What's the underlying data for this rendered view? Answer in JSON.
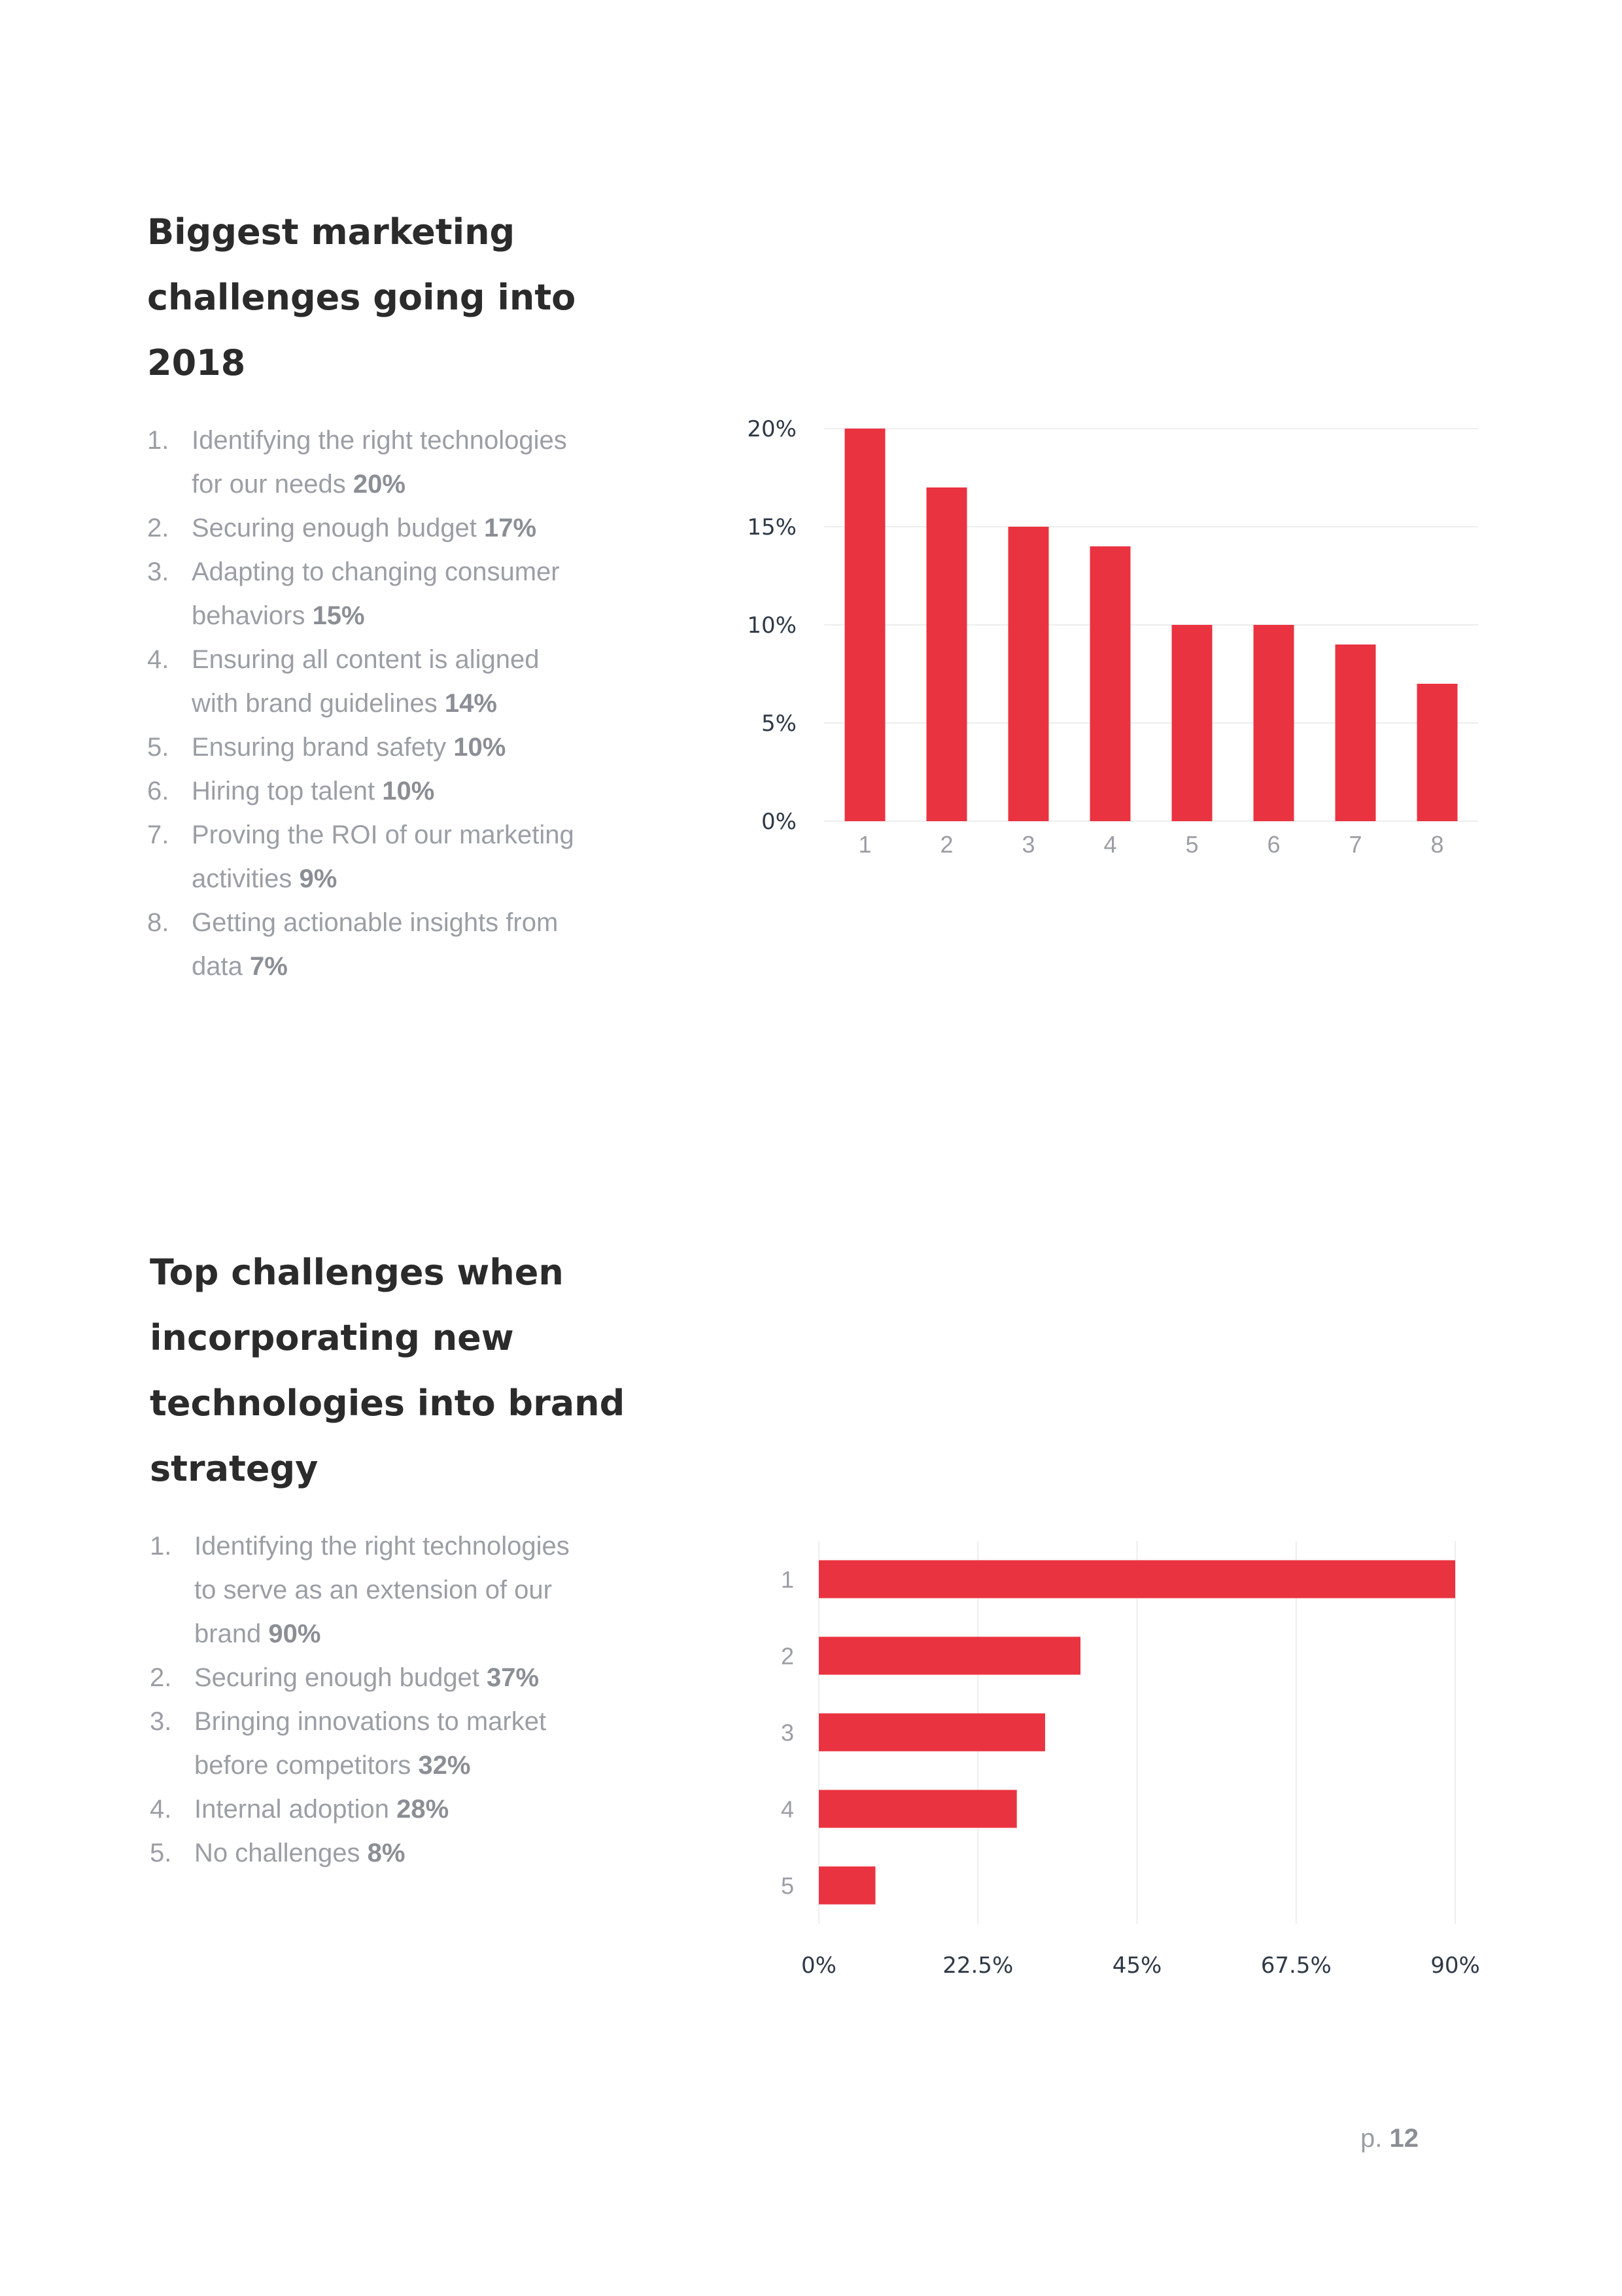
{
  "section1": {
    "title_lines": [
      "Biggest marketing",
      "challenges going into",
      "2018"
    ],
    "items": [
      {
        "num": "1.",
        "lines": [
          "Identifying the right technologies",
          "for our needs "
        ],
        "pct": "20%"
      },
      {
        "num": "2.",
        "lines": [
          "Securing enough budget "
        ],
        "pct": "17%"
      },
      {
        "num": "3.",
        "lines": [
          "Adapting to changing consumer",
          "behaviors "
        ],
        "pct": "15%"
      },
      {
        "num": "4.",
        "lines": [
          "Ensuring all content is aligned",
          "with brand guidelines "
        ],
        "pct": "14%"
      },
      {
        "num": "5.",
        "lines": [
          "Ensuring brand safety "
        ],
        "pct": "10%"
      },
      {
        "num": "6.",
        "lines": [
          "Hiring top talent "
        ],
        "pct": "10%"
      },
      {
        "num": "7.",
        "lines": [
          "Proving the ROI of our marketing",
          "activities "
        ],
        "pct": "9%"
      },
      {
        "num": "8.",
        "lines": [
          "Getting actionable insights from",
          "data "
        ],
        "pct": "7%"
      }
    ]
  },
  "section2": {
    "title_lines": [
      "Top challenges when",
      "incorporating new",
      "technologies into brand",
      "strategy"
    ],
    "items": [
      {
        "num": "1.",
        "lines": [
          "Identifying the right technologies",
          "to serve as an extension of our",
          "brand "
        ],
        "pct": "90%"
      },
      {
        "num": "2.",
        "lines": [
          "Securing enough budget "
        ],
        "pct": "37%"
      },
      {
        "num": "3.",
        "lines": [
          "Bringing innovations to market",
          "before competitors "
        ],
        "pct": "32%"
      },
      {
        "num": "4.",
        "lines": [
          "Internal adoption "
        ],
        "pct": "28%"
      },
      {
        "num": "5.",
        "lines": [
          "No challenges "
        ],
        "pct": "8%"
      }
    ]
  },
  "page": {
    "prefix": "p. ",
    "number": "12"
  },
  "colors": {
    "bar": "#ea3340",
    "text_muted": "#9b9ea4",
    "heading": "#2b2b2b"
  },
  "chart_data": [
    {
      "type": "bar",
      "orientation": "vertical",
      "categories": [
        "1",
        "2",
        "3",
        "4",
        "5",
        "6",
        "7",
        "8"
      ],
      "values": [
        20,
        17,
        15,
        14,
        10,
        10,
        9,
        7
      ],
      "ylim": [
        0,
        20
      ],
      "yticks": [
        "0%",
        "5%",
        "10%",
        "15%",
        "20%"
      ],
      "ytick_values": [
        0,
        5,
        10,
        15,
        20
      ],
      "title": "",
      "xlabel": "",
      "ylabel": ""
    },
    {
      "type": "bar",
      "orientation": "horizontal",
      "categories": [
        "1",
        "2",
        "3",
        "4",
        "5"
      ],
      "values": [
        90,
        37,
        32,
        28,
        8
      ],
      "xlim": [
        0,
        90
      ],
      "xticks": [
        "0%",
        "22.5%",
        "45%",
        "67.5%",
        "90%"
      ],
      "xtick_values": [
        0,
        22.5,
        45,
        67.5,
        90
      ],
      "title": "",
      "xlabel": "",
      "ylabel": ""
    }
  ]
}
